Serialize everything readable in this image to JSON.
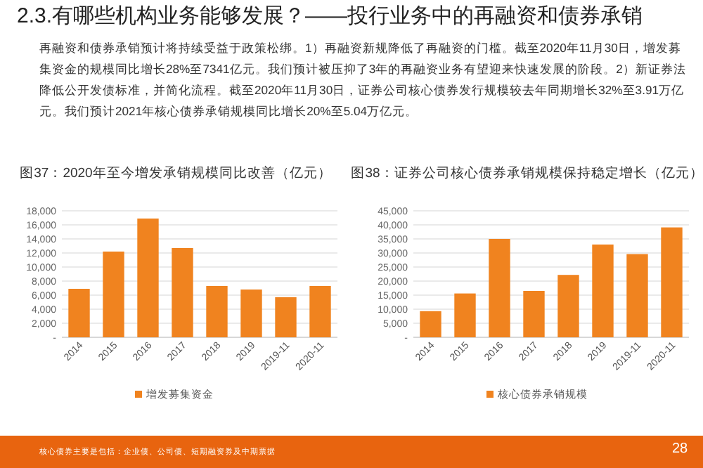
{
  "chart_data": [
    {
      "type": "bar",
      "title": "图37：2020年至今增发承销规模同比改善（亿元）",
      "categories": [
        "2014",
        "2015",
        "2016",
        "2017",
        "2018",
        "2019",
        "2019-11",
        "2020-11"
      ],
      "series": [
        {
          "name": "增发募集资金",
          "color": "#f0831f",
          "values": [
            6900,
            12200,
            16900,
            12700,
            7300,
            6800,
            5700,
            7300
          ]
        }
      ],
      "ylim": [
        0,
        18000
      ],
      "yticks": [
        {
          "value": 0,
          "label": "-"
        },
        {
          "value": 2000,
          "label": "2,000"
        },
        {
          "value": 4000,
          "label": "4,000"
        },
        {
          "value": 6000,
          "label": "6,000"
        },
        {
          "value": 8000,
          "label": "8,000"
        },
        {
          "value": 10000,
          "label": "10,000"
        },
        {
          "value": 12000,
          "label": "12,000"
        },
        {
          "value": 14000,
          "label": "14,000"
        },
        {
          "value": 16000,
          "label": "16,000"
        },
        {
          "value": 18000,
          "label": "18,000"
        }
      ],
      "grid": "y",
      "legend": "bottom",
      "annotations": [
        "2.3.有哪些机构业务能够发展？——投行业务中的再融资和债券承销",
        "再融资和债券承销预计将持续受益于政策松绑。1）再融资新规降低了再融资的门槛。截至2020年11月30日，增发募集资金的规模同比增长28%至7341亿元。我们预计被压抑了3年的再融资业务有望迎来快速发展的阶段。2）新证券法降低公开发债标准，并简化流程。截至2020年11月30日，证券公司核心债券发行规模较去年同期增长32%至3.91万亿元。我们预计2021年核心债券承销规模同比增长20%至5.04万亿元。"
      ]
    },
    {
      "type": "bar",
      "title": "图38：证券公司核心债券承销规模保持稳定增长（亿元）",
      "categories": [
        "2014",
        "2015",
        "2016",
        "2017",
        "2018",
        "2019",
        "2019-11",
        "2020-11"
      ],
      "series": [
        {
          "name": "核心债券承销规模",
          "color": "#f0831f",
          "values": [
            9300,
            15600,
            35000,
            16500,
            22200,
            33000,
            29600,
            39100
          ]
        }
      ],
      "ylim": [
        0,
        45000
      ],
      "yticks": [
        {
          "value": 0,
          "label": "-"
        },
        {
          "value": 5000,
          "label": "5,000"
        },
        {
          "value": 10000,
          "label": "10,000"
        },
        {
          "value": 15000,
          "label": "15,000"
        },
        {
          "value": 20000,
          "label": "20,000"
        },
        {
          "value": 25000,
          "label": "25,000"
        },
        {
          "value": 30000,
          "label": "30,000"
        },
        {
          "value": 35000,
          "label": "35,000"
        },
        {
          "value": 40000,
          "label": "40,000"
        },
        {
          "value": 45000,
          "label": "45,000"
        }
      ],
      "grid": "y",
      "legend": "bottom",
      "annotations": [
        "核心债券主要是包括：企业债、公司债、短期融资券及中期票据",
        "28"
      ]
    }
  ]
}
